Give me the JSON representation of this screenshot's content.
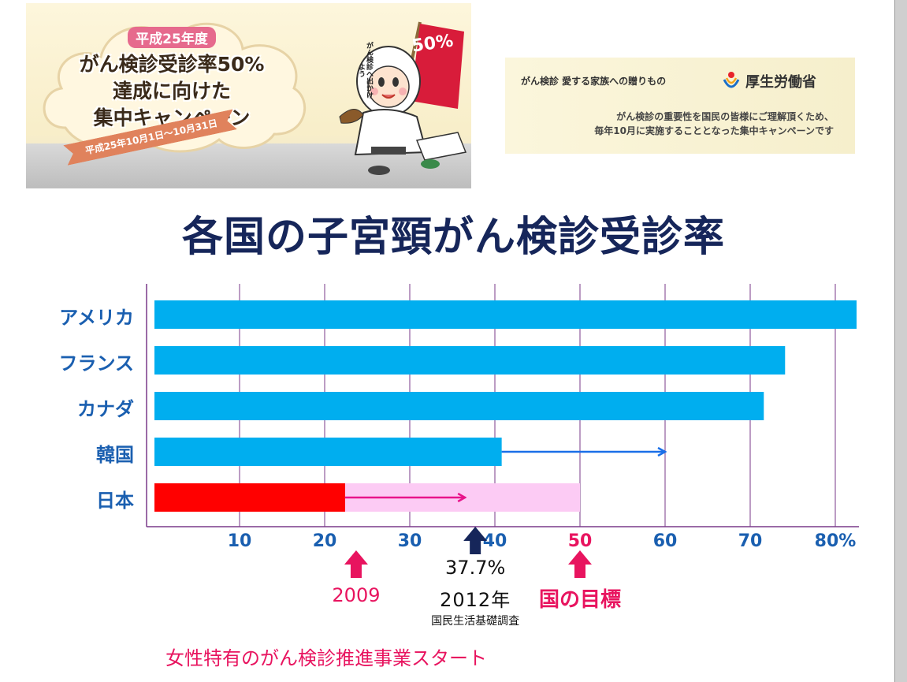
{
  "banner": {
    "era": "平成25年度",
    "line1": "がん検診受診率50%",
    "line2": "達成に向けた",
    "line3": "集中キャンペーン",
    "period": "平成25年10月1日〜10月31日",
    "bubble": "がん検診へ出かけよう",
    "flag": "50%"
  },
  "banner2": {
    "title": "がん検診 愛する家族への贈りもの",
    "ministry": "厚生労働省",
    "desc1": "がん検診の重要性を国民の皆様にご理解頂くため、",
    "desc2": "毎年10月に実施することとなった集中キャンペーンです"
  },
  "title": "各国の子宮頸がん検診受診率",
  "chart_data": {
    "type": "bar",
    "orientation": "horizontal",
    "categories": [
      "アメリカ",
      "フランス",
      "カナダ",
      "韓国",
      "日本"
    ],
    "values": [
      82.5,
      74.1,
      71.6,
      40.8,
      22.4
    ],
    "target_band": {
      "category": "日本",
      "from": 22.4,
      "to": 50
    },
    "arrows": [
      {
        "category": "韓国",
        "from": 40.8,
        "to": 60
      },
      {
        "category": "日本",
        "from": 22.4,
        "to": 36.5
      }
    ],
    "question_mark": "?",
    "xlim": [
      0,
      82.5
    ],
    "xticks": [
      {
        "value": 10,
        "label": "10",
        "color": "#1a5fb0"
      },
      {
        "value": 20,
        "label": "20",
        "color": "#1a5fb0"
      },
      {
        "value": 30,
        "label": "30",
        "color": "#1a5fb0"
      },
      {
        "value": 40,
        "label": "40",
        "color": "#1a5fb0"
      },
      {
        "value": 50,
        "label": "50",
        "color": "#e8145f"
      },
      {
        "value": 60,
        "label": "60",
        "color": "#1a5fb0"
      },
      {
        "value": 70,
        "label": "70",
        "color": "#1a5fb0"
      },
      {
        "value": 80,
        "label": "80%",
        "color": "#1a5fb0"
      }
    ],
    "grid": true,
    "colors": {
      "bar": "#00aeef",
      "japan_bar": "#ff0000",
      "japan_target": "#fccbf4",
      "korea_arrow": "#1a6fe8",
      "japan_arrow": "#e8148a",
      "grid": "#7a3a8a",
      "axis": "#7a3a8a"
    },
    "annotations": {
      "year2009": {
        "label": "2009",
        "x": 23.7
      },
      "survey": {
        "pct": "37.7%",
        "year": "2012年",
        "source": "国民生活基礎調査",
        "x": 37.7
      },
      "goal": {
        "label": "国の目標",
        "x": 50
      }
    }
  },
  "footer": "女性特有のがん検診推進事業スタート"
}
